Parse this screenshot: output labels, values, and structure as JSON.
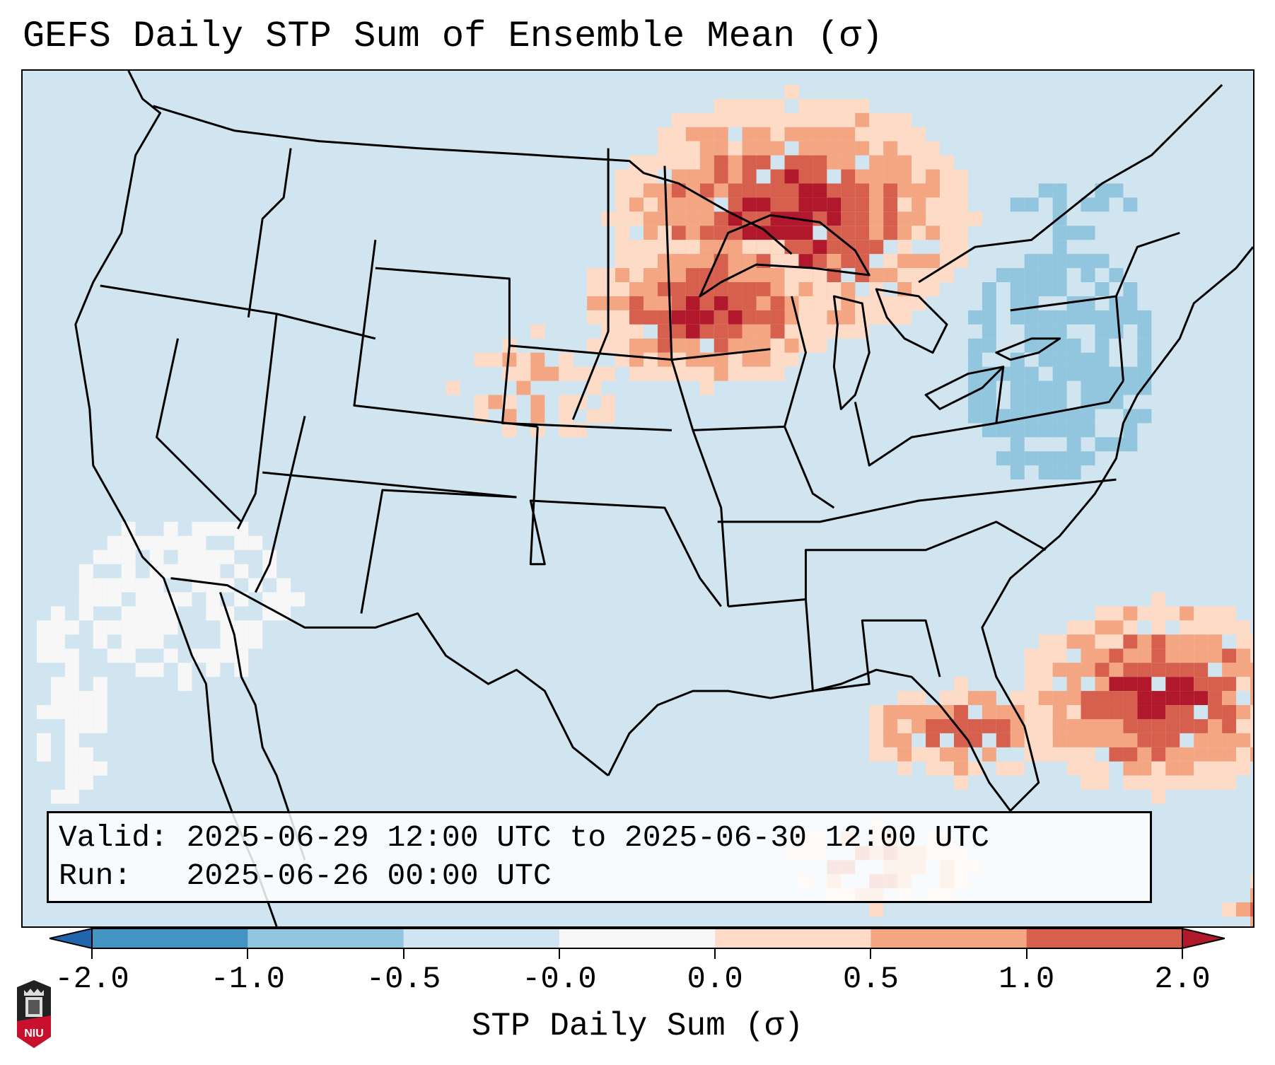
{
  "title": "GEFS Daily STP Sum of Ensemble Mean (σ)",
  "info": {
    "valid_line": "Valid: 2025-06-29 12:00 UTC to 2025-06-30 12:00 UTC",
    "run_line": "Run:   2025-06-26 00:00 UTC"
  },
  "colorbar": {
    "label": "STP Daily Sum (σ)",
    "ticks": [
      "-2.0",
      "-1.0",
      "-0.5",
      "-0.0",
      "0.0",
      "0.5",
      "1.0",
      "2.0"
    ],
    "bins": [
      {
        "range": "< -2.0",
        "color": "#2166ac"
      },
      {
        "range": "-2.0 to -1.0",
        "color": "#4393c3"
      },
      {
        "range": "-1.0 to -0.5",
        "color": "#92c5de"
      },
      {
        "range": "-0.5 to -0.0",
        "color": "#d1e5f0"
      },
      {
        "range": "-0.0 to 0.0",
        "color": "#f7f7f7"
      },
      {
        "range": "0.0 to 0.5",
        "color": "#fddbc7"
      },
      {
        "range": "0.5 to 1.0",
        "color": "#f4a582"
      },
      {
        "range": "1.0 to 2.0",
        "color": "#d6604d"
      },
      {
        "range": "> 2.0",
        "color": "#b2182b"
      }
    ]
  },
  "map": {
    "background_level": "-0.5 to -0.0",
    "regions": [
      {
        "name": "Upper Midwest / Ontario",
        "level": "> 2.0"
      },
      {
        "name": "Western Atlantic east of Florida",
        "level": "> 2.0"
      },
      {
        "name": "Northern Gulf of Mexico",
        "level": "1.0 to 2.0"
      },
      {
        "name": "Northeast US / Quebec",
        "level": "-1.0 to -0.5"
      },
      {
        "name": "Eastern Pacific off Baja",
        "level": "-0.0 to 0.0"
      }
    ]
  },
  "logo": {
    "text": "NIU"
  }
}
